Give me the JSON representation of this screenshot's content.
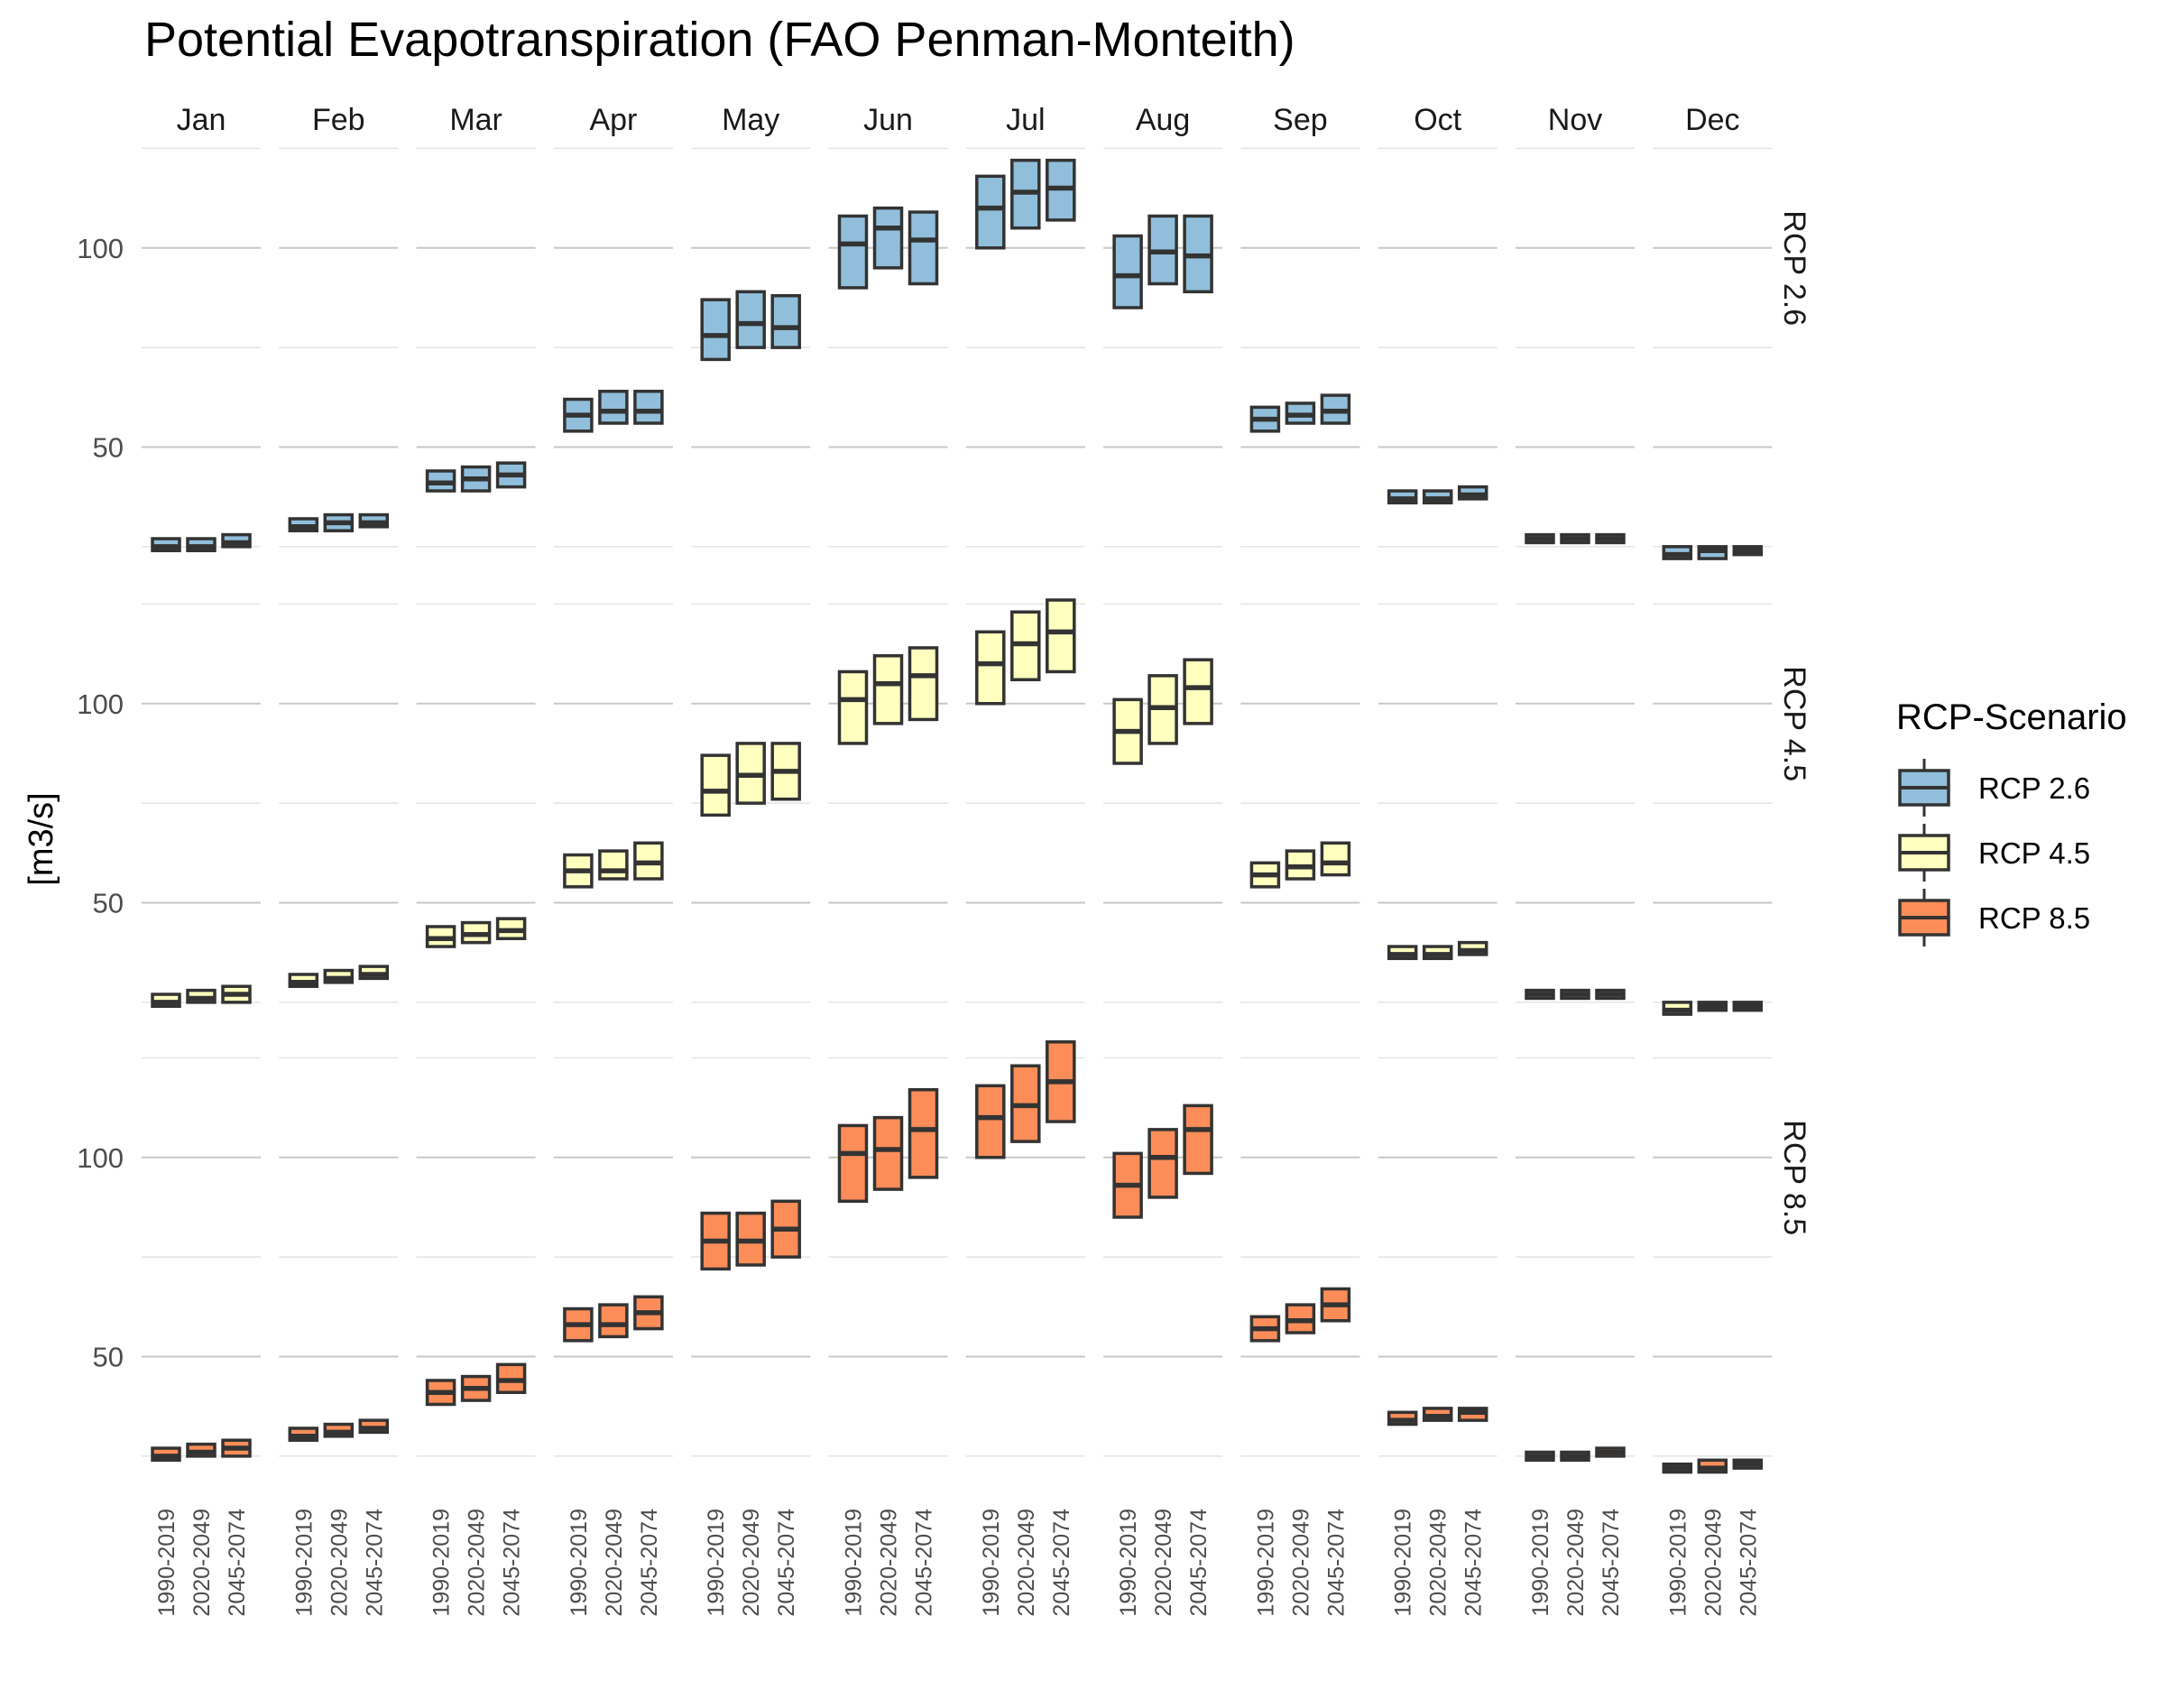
{
  "chart_data": {
    "type": "box",
    "title": "Potential Evapotranspiration (FAO Penman-Monteith)",
    "ylabel": "[m3/s]",
    "xlabel": "",
    "ylim": [
      15,
      120
    ],
    "yticks": [
      50,
      100
    ],
    "ytick_labels": [
      "50",
      "100"
    ],
    "grid": true,
    "panels": [
      "Jan",
      "Feb",
      "Mar",
      "Apr",
      "May",
      "Jun",
      "Jul",
      "Aug",
      "Sep",
      "Oct",
      "Nov",
      "Dec"
    ],
    "categories": [
      "1990-2019",
      "2020-2049",
      "2045-2074"
    ],
    "legend": {
      "title": "RCP-Scenario",
      "position": "right",
      "entries": [
        {
          "name": "RCP 2.6",
          "color": "#91bfdb"
        },
        {
          "name": "RCP 4.5",
          "color": "#ffffbf"
        },
        {
          "name": "RCP 8.5",
          "color": "#fc8d59"
        }
      ]
    },
    "series": [
      {
        "name": "RCP 2.6",
        "color": "#91bfdb",
        "boxes": [
          [
            [
              24,
              25,
              27
            ],
            [
              24,
              25,
              27
            ],
            [
              25,
              26,
              28
            ]
          ],
          [
            [
              29,
              30,
              32
            ],
            [
              29,
              31,
              33
            ],
            [
              30,
              31,
              33
            ]
          ],
          [
            [
              39,
              41,
              44
            ],
            [
              39,
              42,
              45
            ],
            [
              40,
              43,
              46
            ]
          ],
          [
            [
              54,
              58,
              62
            ],
            [
              56,
              59,
              64
            ],
            [
              56,
              59,
              64
            ]
          ],
          [
            [
              72,
              78,
              87
            ],
            [
              75,
              81,
              89
            ],
            [
              75,
              80,
              88
            ]
          ],
          [
            [
              90,
              101,
              108
            ],
            [
              95,
              105,
              110
            ],
            [
              91,
              102,
              109
            ]
          ],
          [
            [
              100,
              110,
              118
            ],
            [
              105,
              114,
              122
            ],
            [
              107,
              115,
              122
            ]
          ],
          [
            [
              85,
              93,
              103
            ],
            [
              91,
              99,
              108
            ],
            [
              89,
              98,
              108
            ]
          ],
          [
            [
              54,
              57,
              60
            ],
            [
              56,
              58,
              61
            ],
            [
              56,
              59,
              63
            ]
          ],
          [
            [
              36,
              37,
              39
            ],
            [
              36,
              37,
              39
            ],
            [
              37,
              38,
              40
            ]
          ],
          [
            [
              26,
              27,
              28
            ],
            [
              26,
              27,
              28
            ],
            [
              26,
              27,
              28
            ]
          ],
          [
            [
              22,
              23,
              25
            ],
            [
              22,
              24,
              25
            ],
            [
              23,
              24,
              25
            ]
          ]
        ]
      },
      {
        "name": "RCP 4.5",
        "color": "#ffffbf",
        "boxes": [
          [
            [
              24,
              25,
              27
            ],
            [
              25,
              26,
              28
            ],
            [
              25,
              27,
              29
            ]
          ],
          [
            [
              29,
              30,
              32
            ],
            [
              30,
              31,
              33
            ],
            [
              31,
              32,
              34
            ]
          ],
          [
            [
              39,
              41,
              44
            ],
            [
              40,
              42,
              45
            ],
            [
              41,
              43,
              46
            ]
          ],
          [
            [
              54,
              58,
              62
            ],
            [
              56,
              58,
              63
            ],
            [
              56,
              60,
              65
            ]
          ],
          [
            [
              72,
              78,
              87
            ],
            [
              75,
              82,
              90
            ],
            [
              76,
              83,
              90
            ]
          ],
          [
            [
              90,
              101,
              108
            ],
            [
              95,
              105,
              112
            ],
            [
              96,
              107,
              114
            ]
          ],
          [
            [
              100,
              110,
              118
            ],
            [
              106,
              115,
              123
            ],
            [
              108,
              118,
              126
            ]
          ],
          [
            [
              85,
              93,
              101
            ],
            [
              90,
              99,
              107
            ],
            [
              95,
              104,
              111
            ]
          ],
          [
            [
              54,
              57,
              60
            ],
            [
              56,
              59,
              63
            ],
            [
              57,
              60,
              65
            ]
          ],
          [
            [
              36,
              37,
              39
            ],
            [
              36,
              37,
              39
            ],
            [
              37,
              38,
              40
            ]
          ],
          [
            [
              26,
              27,
              28
            ],
            [
              26,
              27,
              28
            ],
            [
              26,
              27,
              28
            ]
          ],
          [
            [
              22,
              23,
              25
            ],
            [
              23,
              24,
              25
            ],
            [
              23,
              24,
              25
            ]
          ]
        ]
      },
      {
        "name": "RCP 8.5",
        "color": "#fc8d59",
        "boxes": [
          [
            [
              24,
              25,
              27
            ],
            [
              25,
              26,
              28
            ],
            [
              25,
              27,
              29
            ]
          ],
          [
            [
              29,
              30,
              32
            ],
            [
              30,
              31,
              33
            ],
            [
              31,
              32,
              34
            ]
          ],
          [
            [
              38,
              41,
              44
            ],
            [
              39,
              42,
              45
            ],
            [
              41,
              44,
              48
            ]
          ],
          [
            [
              54,
              58,
              62
            ],
            [
              55,
              58,
              63
            ],
            [
              57,
              61,
              65
            ]
          ],
          [
            [
              72,
              79,
              86
            ],
            [
              73,
              79,
              86
            ],
            [
              75,
              82,
              89
            ]
          ],
          [
            [
              89,
              101,
              108
            ],
            [
              92,
              102,
              110
            ],
            [
              95,
              107,
              117
            ]
          ],
          [
            [
              100,
              110,
              118
            ],
            [
              104,
              113,
              123
            ],
            [
              109,
              119,
              129
            ]
          ],
          [
            [
              85,
              93,
              101
            ],
            [
              90,
              100,
              107
            ],
            [
              96,
              107,
              113
            ]
          ],
          [
            [
              54,
              57,
              60
            ],
            [
              56,
              59,
              63
            ],
            [
              59,
              63,
              67
            ]
          ],
          [
            [
              33,
              34,
              36
            ],
            [
              34,
              35,
              37
            ],
            [
              34,
              36,
              37
            ]
          ],
          [
            [
              24,
              25,
              26
            ],
            [
              24,
              25,
              26
            ],
            [
              25,
              26,
              27
            ]
          ],
          [
            [
              21,
              22,
              23
            ],
            [
              21,
              22,
              24
            ],
            [
              22,
              23,
              24
            ]
          ]
        ]
      }
    ]
  }
}
